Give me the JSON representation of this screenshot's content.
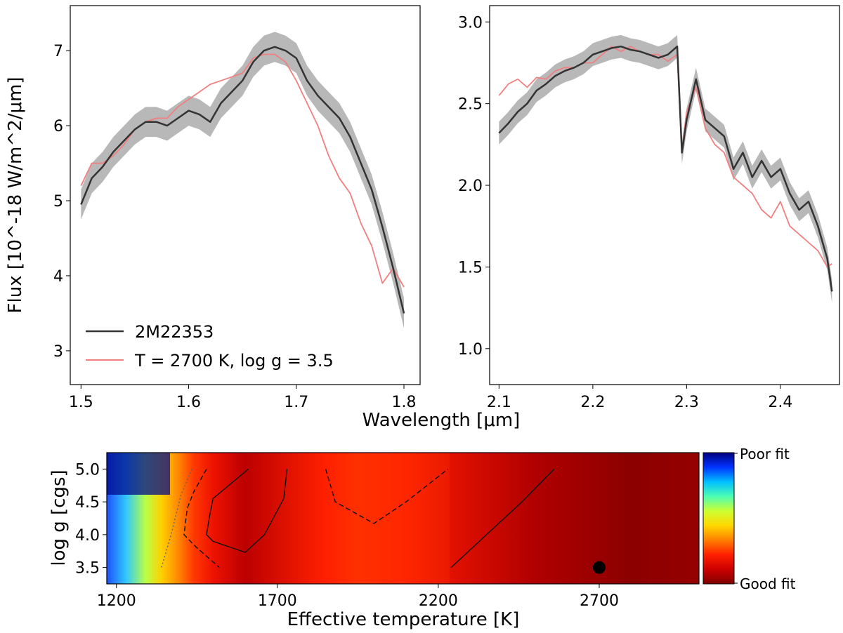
{
  "chart_data": [
    {
      "type": "line",
      "panel": "top-left",
      "xlabel": "Wavelength [μm]",
      "ylabel": "Flux [10^-18 W/m^2/μm]",
      "xlim": [
        1.49,
        1.815
      ],
      "ylim": [
        2.55,
        7.6
      ],
      "xticks": [
        1.5,
        1.6,
        1.7,
        1.8
      ],
      "yticks": [
        3,
        4,
        5,
        6,
        7
      ],
      "legend": {
        "position": "lower-left",
        "entries": [
          "2M22353",
          "T = 2700 K, log g = 3.5"
        ]
      },
      "x": [
        1.5,
        1.51,
        1.52,
        1.53,
        1.54,
        1.55,
        1.56,
        1.57,
        1.58,
        1.59,
        1.6,
        1.61,
        1.62,
        1.63,
        1.64,
        1.65,
        1.66,
        1.67,
        1.68,
        1.69,
        1.7,
        1.71,
        1.72,
        1.73,
        1.74,
        1.75,
        1.76,
        1.77,
        1.78,
        1.79,
        1.8
      ],
      "series": [
        {
          "name": "2M22353",
          "color": "#333333",
          "values": [
            4.95,
            5.3,
            5.45,
            5.65,
            5.8,
            5.95,
            6.05,
            6.05,
            6.0,
            6.1,
            6.2,
            6.15,
            6.05,
            6.3,
            6.45,
            6.6,
            6.85,
            7.0,
            7.05,
            7.0,
            6.9,
            6.6,
            6.4,
            6.25,
            6.1,
            5.85,
            5.5,
            5.15,
            4.65,
            4.1,
            3.5
          ],
          "band": 0.2,
          "band_color": "#b0b0b0"
        },
        {
          "name": "T = 2700 K, log g = 3.5",
          "color": "#f08080",
          "values": [
            5.2,
            5.5,
            5.5,
            5.6,
            5.75,
            5.95,
            6.05,
            6.1,
            6.1,
            6.25,
            6.35,
            6.45,
            6.55,
            6.6,
            6.65,
            6.7,
            6.9,
            6.95,
            6.95,
            6.85,
            6.6,
            6.3,
            6.0,
            5.6,
            5.3,
            5.1,
            4.7,
            4.4,
            3.9,
            4.1,
            3.85
          ]
        }
      ]
    },
    {
      "type": "line",
      "panel": "top-right",
      "xlabel": "",
      "ylabel": "",
      "xlim": [
        2.09,
        2.463
      ],
      "ylim": [
        0.78,
        3.1
      ],
      "xticks": [
        2.1,
        2.2,
        2.3,
        2.4
      ],
      "yticks": [
        1.0,
        1.5,
        2.0,
        2.5,
        3.0
      ],
      "x": [
        2.1,
        2.11,
        2.12,
        2.13,
        2.14,
        2.15,
        2.16,
        2.17,
        2.18,
        2.19,
        2.2,
        2.21,
        2.22,
        2.23,
        2.24,
        2.25,
        2.26,
        2.27,
        2.28,
        2.29,
        2.295,
        2.3,
        2.31,
        2.32,
        2.33,
        2.34,
        2.35,
        2.36,
        2.37,
        2.38,
        2.39,
        2.4,
        2.41,
        2.42,
        2.43,
        2.44,
        2.45,
        2.455
      ],
      "series": [
        {
          "name": "2M22353",
          "color": "#333333",
          "values": [
            2.32,
            2.38,
            2.45,
            2.5,
            2.58,
            2.62,
            2.67,
            2.7,
            2.72,
            2.75,
            2.8,
            2.82,
            2.84,
            2.85,
            2.83,
            2.82,
            2.8,
            2.78,
            2.8,
            2.85,
            2.2,
            2.4,
            2.65,
            2.4,
            2.35,
            2.3,
            2.1,
            2.2,
            2.05,
            2.15,
            2.05,
            2.1,
            1.95,
            1.85,
            1.9,
            1.75,
            1.55,
            1.35
          ],
          "band": 0.07,
          "band_color": "#b0b0b0"
        },
        {
          "name": "T = 2700 K, log g = 3.5",
          "color": "#f08080",
          "values": [
            2.55,
            2.62,
            2.65,
            2.6,
            2.66,
            2.65,
            2.7,
            2.72,
            2.72,
            2.75,
            2.75,
            2.8,
            2.85,
            2.82,
            2.85,
            2.82,
            2.8,
            2.8,
            2.76,
            2.8,
            2.2,
            2.45,
            2.6,
            2.35,
            2.25,
            2.2,
            2.05,
            2.0,
            1.95,
            1.85,
            1.8,
            1.9,
            1.75,
            1.7,
            1.65,
            1.6,
            1.5,
            1.52
          ]
        }
      ]
    },
    {
      "type": "heatmap",
      "panel": "bottom",
      "xlabel": "Effective temperature [K]",
      "ylabel": "log g [cgs]",
      "xlim": [
        1170,
        3010
      ],
      "ylim": [
        3.25,
        5.25
      ],
      "xticks": [
        1200,
        1700,
        2200,
        2700
      ],
      "yticks": [
        3.5,
        4.0,
        4.5,
        5.0
      ],
      "colorbar": {
        "top_label": "Poor fit",
        "bottom_label": "Good fit",
        "colors": [
          "#00007f",
          "#0033ff",
          "#00bfff",
          "#4dffb3",
          "#ccff33",
          "#ffd700",
          "#ff7f00",
          "#ff2000",
          "#cc0000",
          "#7f0000"
        ]
      },
      "column_colors": [
        {
          "teff": 1170,
          "color": "#1e50ff"
        },
        {
          "teff": 1230,
          "color": "#30c8ff"
        },
        {
          "teff": 1290,
          "color": "#b8ff48"
        },
        {
          "teff": 1340,
          "color": "#ffd000"
        },
        {
          "teff": 1390,
          "color": "#ff8a00"
        },
        {
          "teff": 1440,
          "color": "#ff3a00"
        },
        {
          "teff": 1500,
          "color": "#ee1200"
        },
        {
          "teff": 1600,
          "color": "#bb0000"
        },
        {
          "teff": 1720,
          "color": "#dd1000"
        },
        {
          "teff": 1850,
          "color": "#ff2000"
        },
        {
          "teff": 1950,
          "color": "#ff3000"
        },
        {
          "teff": 2100,
          "color": "#ff2200"
        },
        {
          "teff": 2250,
          "color": "#e01000"
        },
        {
          "teff": 2500,
          "color": "#b00000"
        },
        {
          "teff": 2800,
          "color": "#8c0000"
        },
        {
          "teff": 3010,
          "color": "#960000"
        }
      ],
      "best_fit": {
        "teff": 2700,
        "logg": 3.5
      },
      "contours": [
        {
          "style": "solid",
          "points": [
            [
              1610,
              5.0
            ],
            [
              1500,
              4.55
            ],
            [
              1490,
              4.3
            ],
            [
              1480,
              4.0
            ],
            [
              1500,
              3.9
            ],
            [
              1600,
              3.73
            ],
            [
              1660,
              4.0
            ],
            [
              1720,
              4.55
            ],
            [
              1730,
              5.0
            ]
          ]
        },
        {
          "style": "dashed",
          "points": [
            [
              1480,
              5.0
            ],
            [
              1440,
              4.65
            ],
            [
              1420,
              4.4
            ],
            [
              1410,
              4.0
            ],
            [
              1450,
              3.8
            ],
            [
              1520,
              3.5
            ]
          ]
        },
        {
          "style": "dotted",
          "points": [
            [
              1435,
              5.0
            ],
            [
              1400,
              4.6
            ],
            [
              1370,
              4.0
            ],
            [
              1340,
              3.5
            ]
          ]
        },
        {
          "style": "dashed",
          "points": [
            [
              1850,
              5.0
            ],
            [
              1880,
              4.5
            ],
            [
              2000,
              4.17
            ],
            [
              2100,
              4.5
            ],
            [
              2230,
              5.0
            ]
          ]
        },
        {
          "style": "solid",
          "points": [
            [
              2240,
              3.5
            ],
            [
              2350,
              4.0
            ],
            [
              2460,
              4.5
            ],
            [
              2560,
              5.0
            ]
          ]
        }
      ]
    }
  ]
}
